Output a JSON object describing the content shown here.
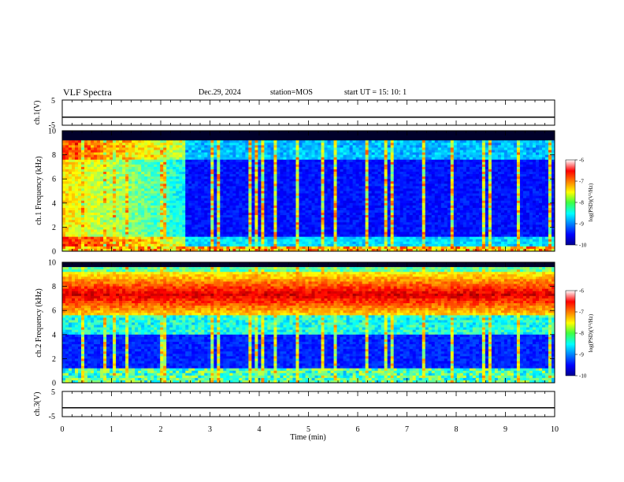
{
  "header": {
    "title": "VLF Spectra",
    "date": "Dec.29, 2024",
    "station": "station=MOS",
    "start": "start UT =  15: 10: 1"
  },
  "chart_data": [
    {
      "type": "line",
      "name": "ch1-waveform",
      "ylabel": "ch.1(V)",
      "ylim": [
        -5,
        5
      ],
      "yticks": [
        "5",
        "-5"
      ],
      "x": [
        0,
        10
      ],
      "series": [
        {
          "values": [
            -1.8,
            -1.8
          ]
        }
      ]
    },
    {
      "type": "heatmap",
      "name": "ch1-spectrogram",
      "ylabel": "ch.1 Frequency (kHz)",
      "ylim": [
        0,
        10
      ],
      "yticks": [
        "0",
        "2",
        "4",
        "6",
        "8",
        "10"
      ],
      "colorbar": {
        "label": "log(PSD)(V²/Hz)",
        "ticks": [
          "-6",
          "-7",
          "-8",
          "-9",
          "-10"
        ],
        "range": [
          -10,
          -6
        ]
      }
    },
    {
      "type": "heatmap",
      "name": "ch2-spectrogram",
      "ylabel": "ch.2 Frequency (kHz)",
      "ylim": [
        0,
        10
      ],
      "yticks": [
        "0",
        "2",
        "4",
        "6",
        "8",
        "10"
      ],
      "colorbar": {
        "label": "log(PSD)(V²/Hz)",
        "ticks": [
          "-6",
          "-7",
          "-8",
          "-9",
          "-10"
        ],
        "range": [
          -10,
          -6
        ]
      }
    },
    {
      "type": "line",
      "name": "ch3-waveform",
      "ylabel": "ch.3(V)",
      "ylim": [
        -5,
        5
      ],
      "yticks": [
        "5",
        "-5"
      ],
      "x": [
        0,
        10
      ],
      "series": [
        {
          "values": [
            -1.5,
            -1.5
          ]
        }
      ]
    }
  ],
  "xaxis": {
    "label": "Time  (min)",
    "range": [
      0,
      10
    ],
    "ticks": [
      "0",
      "1",
      "2",
      "3",
      "4",
      "5",
      "6",
      "7",
      "8",
      "9",
      "10"
    ]
  }
}
